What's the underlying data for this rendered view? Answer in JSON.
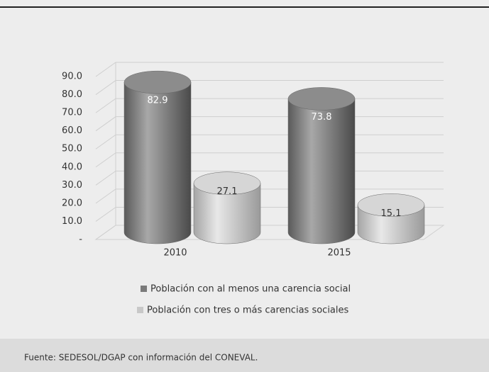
{
  "chart_data": {
    "type": "bar3d",
    "categories": [
      "2010",
      "2015"
    ],
    "series": [
      {
        "name": "Población con al menos una carencia social",
        "color": "#7a7a7a",
        "values": [
          82.9,
          73.8
        ]
      },
      {
        "name": "Población con tres o más carencias sociales",
        "color": "#c8c8c8",
        "values": [
          27.1,
          15.1
        ]
      }
    ],
    "ylim": [
      0,
      90
    ],
    "yticks": [
      {
        "value": 0,
        "label": "-"
      },
      {
        "value": 10,
        "label": "10.0"
      },
      {
        "value": 20,
        "label": "20.0"
      },
      {
        "value": 30,
        "label": "30.0"
      },
      {
        "value": 40,
        "label": "40.0"
      },
      {
        "value": 50,
        "label": "50.0"
      },
      {
        "value": 60,
        "label": "60.0"
      },
      {
        "value": 70,
        "label": "70.0"
      },
      {
        "value": 80,
        "label": "80.0"
      },
      {
        "value": 90,
        "label": "90.0"
      }
    ],
    "grid": true,
    "legend": "bottom",
    "source": "Fuente: SEDESOL/DGAP con información del CONEVAL."
  }
}
